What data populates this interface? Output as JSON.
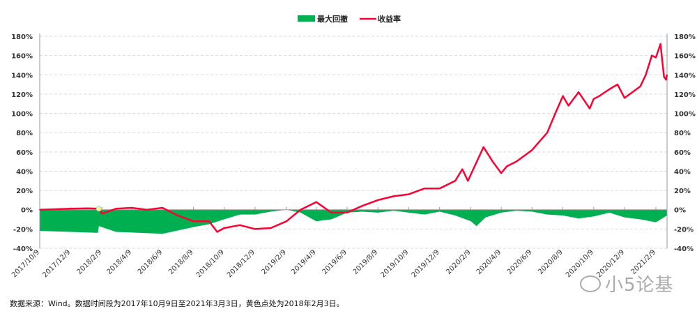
{
  "chart_data": {
    "type": "line+area",
    "title": "",
    "legend": {
      "position": "top-center",
      "entries": [
        "最大回撤",
        "收益率"
      ]
    },
    "colors": {
      "最大回撤": "#00b050",
      "收益率": "#ff0033",
      "marker": "#ffff66",
      "grid": "#d9d9d9"
    },
    "ylim": [
      -40,
      180
    ],
    "y_ticks": [
      "-40%",
      "-20%",
      "0%",
      "20%",
      "40%",
      "60%",
      "80%",
      "100%",
      "120%",
      "140%",
      "160%",
      "180%"
    ],
    "y_right_ticks": [
      "-40%",
      "-20%",
      "0%",
      "20%",
      "40%",
      "60%",
      "80%",
      "100%",
      "120%",
      "140%",
      "160%",
      "180%"
    ],
    "x_range": [
      "2017-10-09",
      "2021-03-03"
    ],
    "x_ticks": [
      "2017/10/9",
      "2017/12/9",
      "2018/2/9",
      "2018/4/9",
      "2018/6/9",
      "2018/8/9",
      "2018/10/9",
      "2018/12/9",
      "2019/2/9",
      "2019/4/9",
      "2019/6/9",
      "2019/8/9",
      "2019/10/9",
      "2019/12/9",
      "2020/2/9",
      "2020/4/9",
      "2020/6/9",
      "2020/8/9",
      "2020/10/9",
      "2020/12/9",
      "2021/2/9"
    ],
    "grid": "horizontal dashed",
    "series": [
      {
        "name": "收益率",
        "type": "line",
        "unit": "%",
        "points": [
          [
            "2017-10-09",
            0
          ],
          [
            "2017-11-09",
            0.5
          ],
          [
            "2017-12-09",
            1
          ],
          [
            "2018-01-09",
            1.5
          ],
          [
            "2018-02-03",
            1
          ],
          [
            "2018-02-09",
            -4
          ],
          [
            "2018-03-09",
            1
          ],
          [
            "2018-04-09",
            2
          ],
          [
            "2018-05-09",
            0
          ],
          [
            "2018-06-09",
            2
          ],
          [
            "2018-07-09",
            -6
          ],
          [
            "2018-08-09",
            -12
          ],
          [
            "2018-09-09",
            -12
          ],
          [
            "2018-09-25",
            -23
          ],
          [
            "2018-10-09",
            -19
          ],
          [
            "2018-11-09",
            -16
          ],
          [
            "2018-12-09",
            -20
          ],
          [
            "2019-01-09",
            -19
          ],
          [
            "2019-02-09",
            -12
          ],
          [
            "2019-03-09",
            0
          ],
          [
            "2019-04-09",
            8
          ],
          [
            "2019-05-09",
            -3
          ],
          [
            "2019-06-09",
            -3
          ],
          [
            "2019-07-09",
            4
          ],
          [
            "2019-08-09",
            10
          ],
          [
            "2019-09-09",
            14
          ],
          [
            "2019-10-09",
            16
          ],
          [
            "2019-11-09",
            22
          ],
          [
            "2019-12-09",
            22
          ],
          [
            "2020-01-09",
            30
          ],
          [
            "2020-01-23",
            42
          ],
          [
            "2020-02-03",
            30
          ],
          [
            "2020-03-05",
            65
          ],
          [
            "2020-03-23",
            50
          ],
          [
            "2020-04-09",
            38
          ],
          [
            "2020-04-20",
            45
          ],
          [
            "2020-05-09",
            50
          ],
          [
            "2020-06-09",
            62
          ],
          [
            "2020-07-09",
            80
          ],
          [
            "2020-07-25",
            100
          ],
          [
            "2020-08-09",
            118
          ],
          [
            "2020-08-20",
            108
          ],
          [
            "2020-09-09",
            122
          ],
          [
            "2020-10-01",
            105
          ],
          [
            "2020-10-09",
            115
          ],
          [
            "2020-10-20",
            118
          ],
          [
            "2020-11-09",
            125
          ],
          [
            "2020-11-25",
            130
          ],
          [
            "2020-12-09",
            116
          ],
          [
            "2021-01-09",
            128
          ],
          [
            "2021-01-20",
            140
          ],
          [
            "2021-02-01",
            160
          ],
          [
            "2021-02-09",
            158
          ],
          [
            "2021-02-18",
            172
          ],
          [
            "2021-02-25",
            138
          ],
          [
            "2021-03-01",
            135
          ],
          [
            "2021-03-03",
            140
          ]
        ]
      },
      {
        "name": "最大回撤",
        "type": "area",
        "unit": "%",
        "points": [
          [
            "2017-10-09",
            -22
          ],
          [
            "2017-12-09",
            -23
          ],
          [
            "2018-02-01",
            -24
          ],
          [
            "2018-02-03",
            -17
          ],
          [
            "2018-03-09",
            -23
          ],
          [
            "2018-06-09",
            -25
          ],
          [
            "2018-08-09",
            -18
          ],
          [
            "2018-09-09",
            -15
          ],
          [
            "2018-10-09",
            -10
          ],
          [
            "2018-11-09",
            -5
          ],
          [
            "2018-12-09",
            -5
          ],
          [
            "2019-01-09",
            -2
          ],
          [
            "2019-02-09",
            0
          ],
          [
            "2019-03-09",
            -3
          ],
          [
            "2019-04-09",
            -12
          ],
          [
            "2019-05-09",
            -10
          ],
          [
            "2019-06-09",
            -3
          ],
          [
            "2019-07-09",
            -2
          ],
          [
            "2019-08-09",
            -3
          ],
          [
            "2019-09-09",
            -1
          ],
          [
            "2019-10-09",
            -3
          ],
          [
            "2019-11-09",
            -5
          ],
          [
            "2019-12-09",
            -2
          ],
          [
            "2020-01-09",
            -6
          ],
          [
            "2020-02-09",
            -12
          ],
          [
            "2020-02-20",
            -17
          ],
          [
            "2020-03-09",
            -8
          ],
          [
            "2020-04-09",
            -3
          ],
          [
            "2020-05-09",
            -1
          ],
          [
            "2020-06-09",
            -2
          ],
          [
            "2020-07-09",
            -5
          ],
          [
            "2020-08-09",
            -6
          ],
          [
            "2020-09-09",
            -9
          ],
          [
            "2020-10-09",
            -7
          ],
          [
            "2020-11-09",
            -3
          ],
          [
            "2020-12-09",
            -8
          ],
          [
            "2021-01-09",
            -10
          ],
          [
            "2021-02-09",
            -13
          ],
          [
            "2021-03-03",
            -6
          ]
        ]
      }
    ],
    "annotations": [
      {
        "type": "marker",
        "date": "2018-02-03",
        "value": 1,
        "color": "yellow"
      }
    ]
  },
  "footnote": "数据来源：Wind。数据时间段为2017年10月9日至2021年3月3日，黄色点处为2018年2月3日。",
  "watermark": "小5论基"
}
